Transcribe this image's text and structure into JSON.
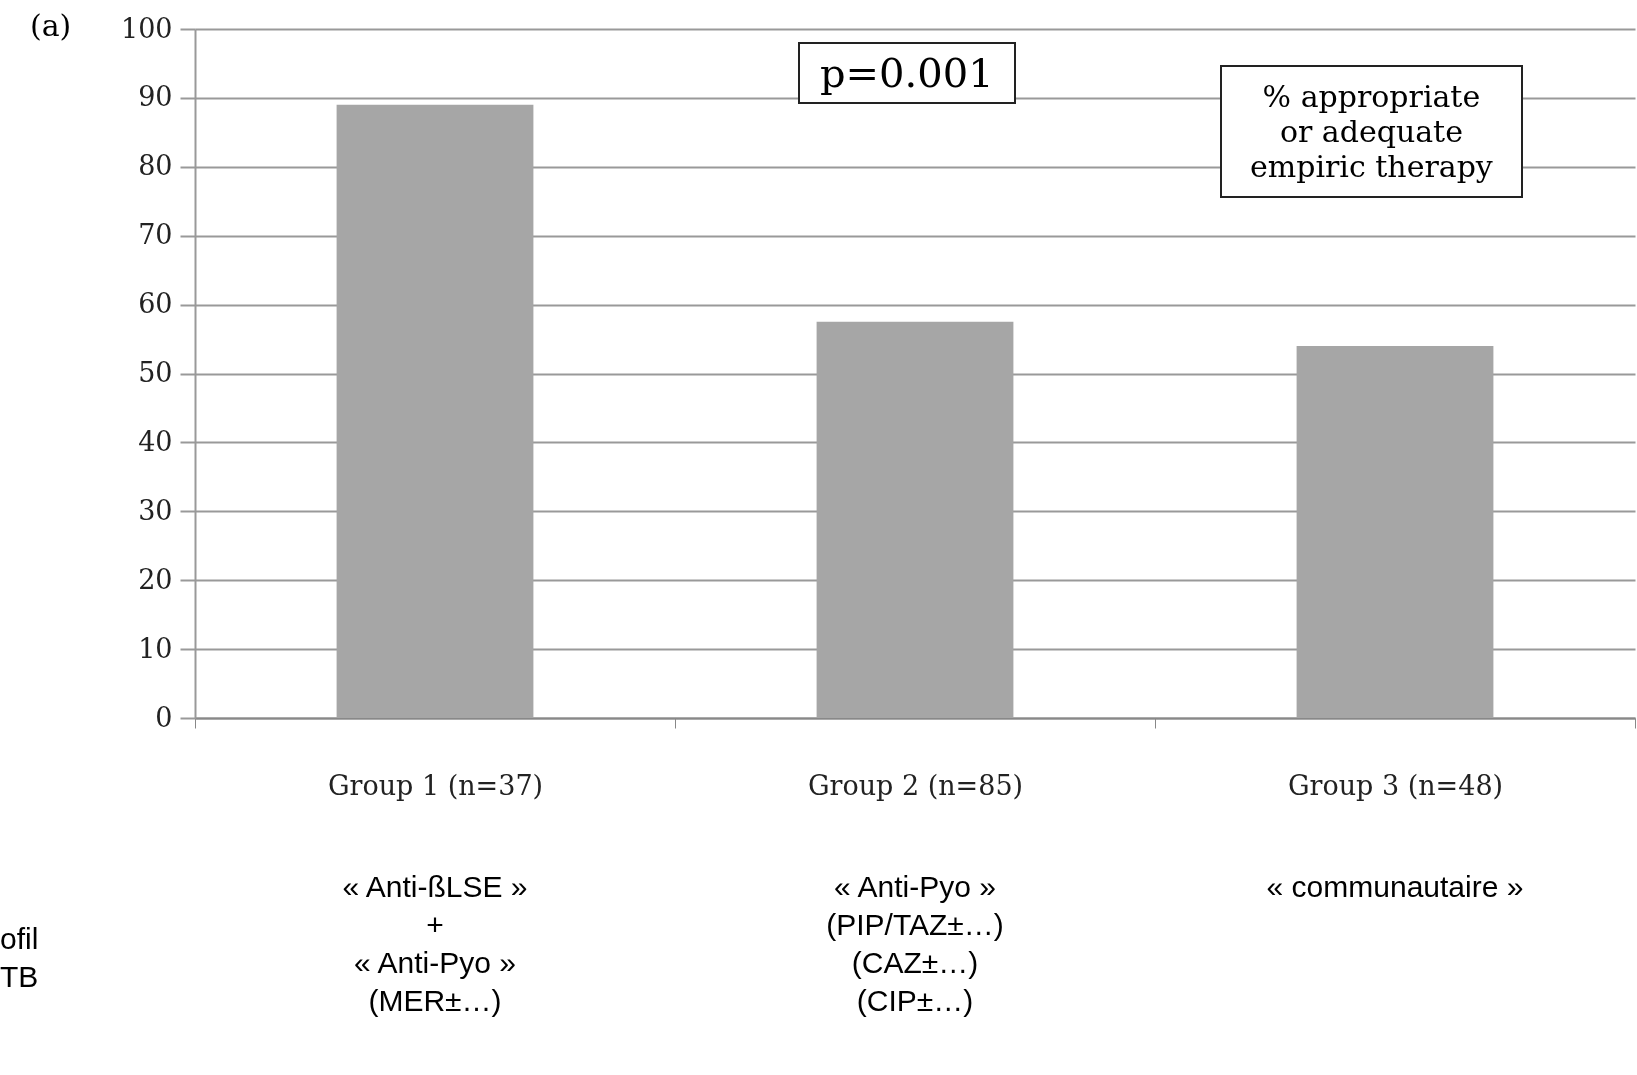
{
  "chart_data": {
    "type": "bar",
    "categories": [
      "Group 1 (n=37)",
      "Group 2 (n=85)",
      "Group 3 (n=48)"
    ],
    "values": [
      89,
      57.5,
      54
    ],
    "color": "#a6a6a6",
    "ylim": [
      0,
      100
    ],
    "yticks": [
      0,
      10,
      20,
      30,
      40,
      50,
      60,
      70,
      80,
      90,
      100
    ],
    "grid": "y",
    "annotations": [
      "(a)",
      "p=0.001",
      "% appropriate\nor adequate\nempiric therapy",
      "« Anti-ßLSE »\n+\n« Anti-Pyo »\n(MER±…)",
      "« Anti-Pyo »\n(PIP/TAZ±…)\n(CAZ±…)\n(CIP±…)",
      "« communautaire »",
      "ofil\nTB"
    ]
  }
}
